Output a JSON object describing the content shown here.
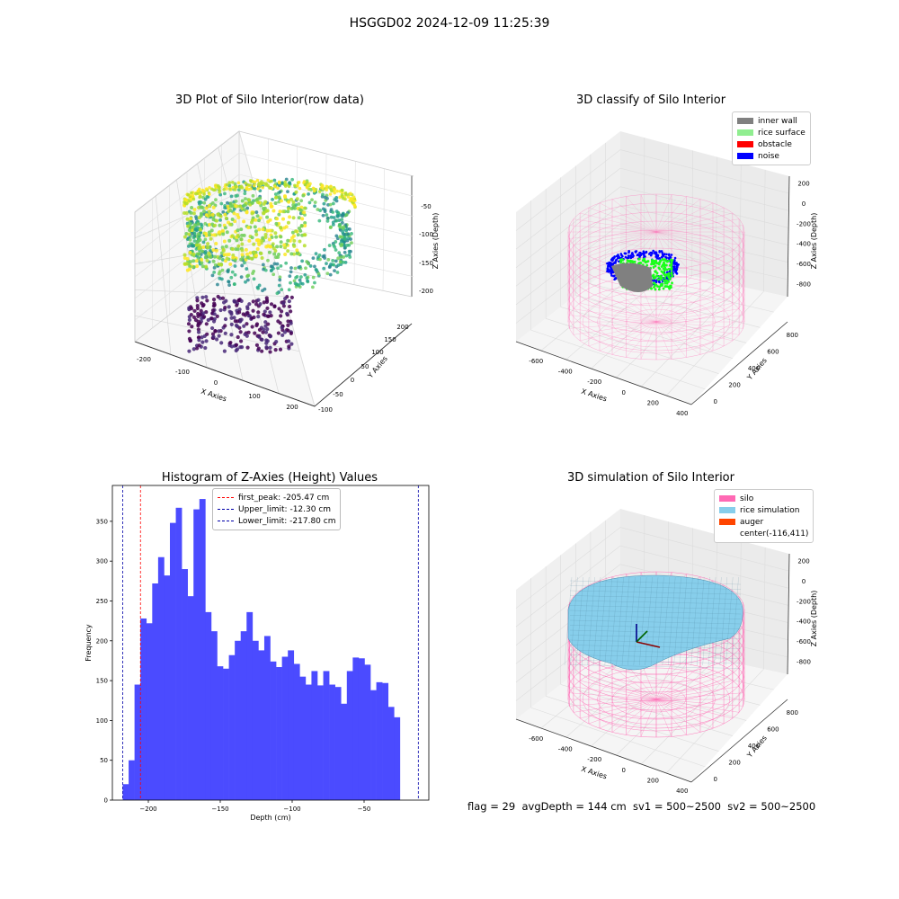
{
  "suptitle": "HSGGD02 2024-12-09 11:25:39",
  "footer": "flag = 29  avgDepth = 144 cm  sv1 = 500~2500  sv2 = 500~2500",
  "colors": {
    "silo": "#ff69b4",
    "rice_sim": "#87ceeb",
    "auger": "#ff4500",
    "inner_wall": "#808080",
    "rice_surface": "#90ee90",
    "obstacle": "#ff0000",
    "noise": "#0000ff",
    "hist_bar": "#4b4bff"
  },
  "chart_data": [
    {
      "type": "scatter",
      "title": "3D Plot of Silo Interior(row data)",
      "xlabel": "X Axies",
      "ylabel": "Y Axies",
      "zlabel": "Z Axies (Depth)",
      "x_ticks": [
        "-200",
        "-100",
        "0",
        "100",
        "200"
      ],
      "y_ticks": [
        "-100",
        "-50",
        "0",
        "50",
        "100",
        "150",
        "200"
      ],
      "z_ticks": [
        "-50",
        "-100",
        "-150",
        "-200"
      ],
      "colormap": "viridis"
    },
    {
      "type": "scatter",
      "title": "3D classify of Silo Interior",
      "xlabel": "X Axies",
      "ylabel": "Y Axies",
      "zlabel": "Z Axies (Depth)",
      "x_ticks": [
        "-600",
        "-400",
        "-200",
        "0",
        "200",
        "400"
      ],
      "y_ticks": [
        "0",
        "200",
        "400",
        "600",
        "800"
      ],
      "z_ticks": [
        "200",
        "0",
        "-200",
        "-400",
        "-600",
        "-800"
      ],
      "legend": [
        {
          "label": "inner wall",
          "color": "#808080"
        },
        {
          "label": "rice surface",
          "color": "#90ee90"
        },
        {
          "label": "obstacle",
          "color": "#ff0000"
        },
        {
          "label": "noise",
          "color": "#0000ff"
        }
      ]
    },
    {
      "type": "bar",
      "title": "Histogram of Z-Axies (Height) Values",
      "xlabel": "Depth (cm)",
      "ylabel": "Frequency",
      "xlim": [
        -225,
        -5
      ],
      "ylim": [
        0,
        395
      ],
      "x_ticks": [
        -200,
        -150,
        -100,
        -50
      ],
      "y_ticks": [
        0,
        50,
        100,
        150,
        200,
        250,
        300,
        350
      ],
      "bin_start": -217.8,
      "bin_width": 4.1,
      "values": [
        20,
        50,
        145,
        228,
        222,
        272,
        305,
        282,
        348,
        367,
        290,
        256,
        365,
        378,
        236,
        212,
        168,
        165,
        182,
        200,
        212,
        236,
        200,
        188,
        206,
        174,
        167,
        180,
        188,
        171,
        155,
        145,
        162,
        144,
        162,
        145,
        142,
        121,
        162,
        179,
        178,
        170,
        138,
        148,
        147,
        117,
        104
      ],
      "lines": [
        {
          "label": "first_peak: -205.47 cm",
          "x": -205.47,
          "color": "#ff0000"
        },
        {
          "label": "Upper_limit: -12.30 cm",
          "x": -12.3,
          "color": "#0000aa"
        },
        {
          "label": "Lower_limit: -217.80 cm",
          "x": -217.8,
          "color": "#0000aa"
        }
      ]
    },
    {
      "type": "surface",
      "title": "3D simulation of Silo Interior",
      "xlabel": "X Axies",
      "ylabel": "Y Axies",
      "zlabel": "Z Axies (Depth)",
      "x_ticks": [
        "-600",
        "-400",
        "-200",
        "0",
        "200",
        "400"
      ],
      "y_ticks": [
        "0",
        "200",
        "400",
        "600",
        "800"
      ],
      "z_ticks": [
        "200",
        "0",
        "-200",
        "-400",
        "-600",
        "-800"
      ],
      "legend": [
        {
          "label": "silo",
          "color": "#ff69b4"
        },
        {
          "label": "rice simulation",
          "color": "#87ceeb"
        },
        {
          "label": "auger",
          "color": "#ff4500"
        },
        {
          "label": "center(-116,411)",
          "color": ""
        }
      ]
    }
  ]
}
